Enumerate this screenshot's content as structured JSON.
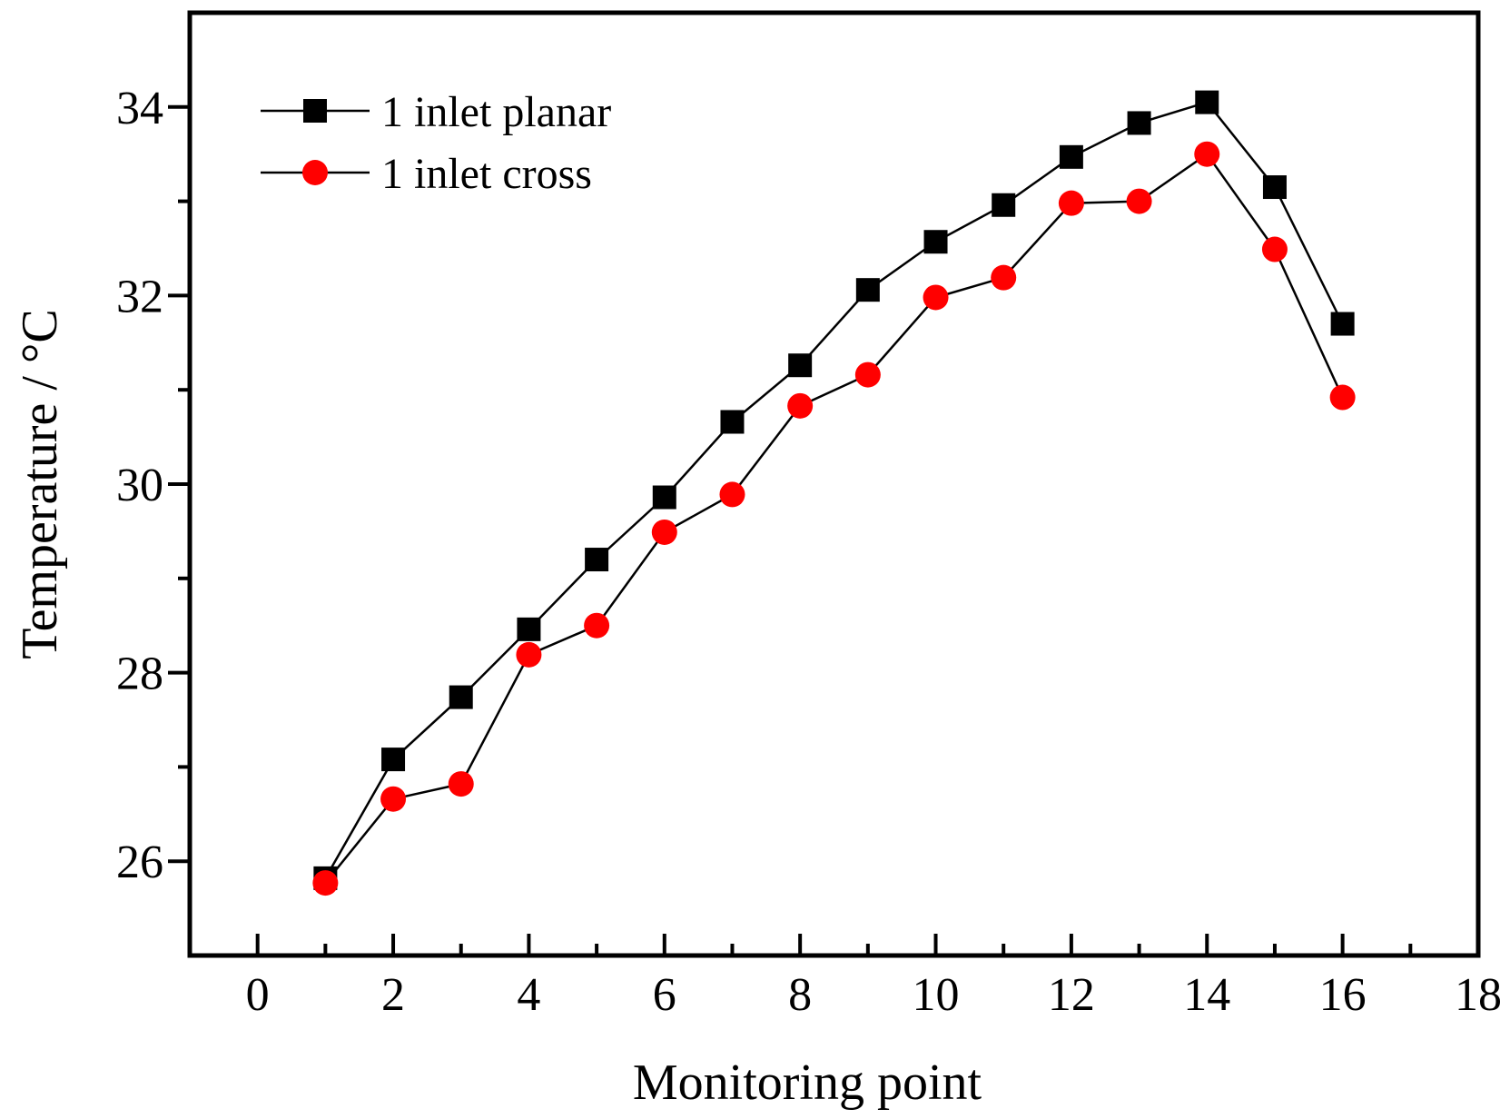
{
  "chart_data": {
    "type": "line",
    "title": "",
    "xlabel": "Monitoring point",
    "ylabel": "Temperature / °C",
    "xlim": [
      -1,
      18
    ],
    "ylim": [
      25,
      35
    ],
    "x_ticks": [
      0,
      2,
      4,
      6,
      8,
      10,
      12,
      14,
      16,
      18
    ],
    "y_ticks": [
      26,
      28,
      30,
      32,
      34
    ],
    "grid": false,
    "legend_position": "top-left",
    "x": [
      1,
      2,
      3,
      4,
      5,
      6,
      7,
      8,
      9,
      10,
      11,
      12,
      13,
      14,
      15,
      16
    ],
    "series": [
      {
        "name": "1 inlet planar",
        "marker": "square",
        "color": "#000000",
        "values": [
          25.82,
          27.08,
          27.74,
          28.46,
          29.2,
          29.86,
          30.66,
          31.26,
          32.06,
          32.57,
          32.96,
          33.47,
          33.83,
          34.05,
          33.15,
          31.7
        ]
      },
      {
        "name": "1 inlet cross",
        "marker": "circle",
        "color": "#ff0000",
        "values": [
          25.77,
          26.66,
          26.82,
          28.19,
          28.5,
          29.49,
          29.89,
          30.83,
          31.16,
          31.98,
          32.19,
          32.98,
          33.0,
          33.5,
          32.49,
          30.92
        ]
      }
    ]
  }
}
